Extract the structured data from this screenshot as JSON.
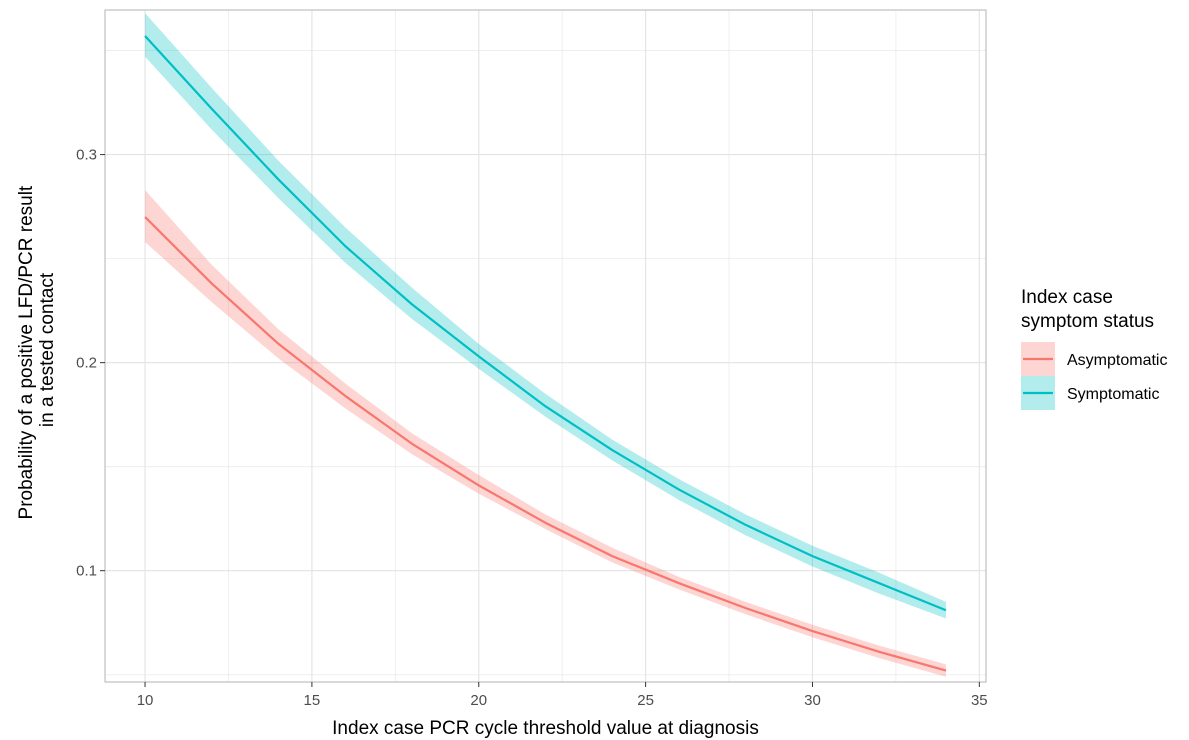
{
  "chart_data": {
    "type": "line",
    "title": "",
    "xlabel": "Index case PCR cycle threshold value at diagnosis",
    "ylabel_lines": [
      "Probability of a positive LFD/PCR result",
      "in a tested contact"
    ],
    "xlim": [
      8.8,
      35.2
    ],
    "ylim": [
      0.0465,
      0.3695
    ],
    "x_ticks": [
      10,
      15,
      20,
      25,
      30,
      35
    ],
    "x_tick_labels": [
      "10",
      "15",
      "20",
      "25",
      "30",
      "35"
    ],
    "y_ticks": [
      0.1,
      0.2,
      0.3
    ],
    "y_tick_labels": [
      "0.1",
      "0.2",
      "0.3"
    ],
    "grid": true,
    "legend": {
      "title_lines": [
        "Index case",
        "symptom status"
      ],
      "placement": "right"
    },
    "series": [
      {
        "name": "Asymptomatic",
        "color": "#F8766D",
        "ribbon_color": "#F8766D",
        "x": [
          10,
          12,
          14,
          16,
          18,
          20,
          22,
          24,
          26,
          28,
          30,
          32,
          34
        ],
        "y": [
          0.27,
          0.238,
          0.209,
          0.184,
          0.161,
          0.141,
          0.123,
          0.107,
          0.094,
          0.082,
          0.071,
          0.061,
          0.052
        ],
        "lower": [
          0.258,
          0.229,
          0.202,
          0.178,
          0.156,
          0.137,
          0.12,
          0.104,
          0.091,
          0.079,
          0.068,
          0.058,
          0.049
        ],
        "upper": [
          0.283,
          0.247,
          0.216,
          0.19,
          0.166,
          0.146,
          0.127,
          0.111,
          0.097,
          0.085,
          0.074,
          0.064,
          0.055
        ]
      },
      {
        "name": "Symptomatic",
        "color": "#00BFC4",
        "ribbon_color": "#00BFC4",
        "x": [
          10,
          12,
          14,
          16,
          18,
          20,
          22,
          24,
          26,
          28,
          30,
          32,
          34
        ],
        "y": [
          0.357,
          0.322,
          0.288,
          0.256,
          0.228,
          0.203,
          0.179,
          0.158,
          0.139,
          0.122,
          0.107,
          0.094,
          0.081
        ],
        "lower": [
          0.347,
          0.312,
          0.279,
          0.248,
          0.221,
          0.197,
          0.174,
          0.153,
          0.134,
          0.117,
          0.102,
          0.089,
          0.077
        ],
        "upper": [
          0.368,
          0.332,
          0.297,
          0.265,
          0.236,
          0.209,
          0.185,
          0.163,
          0.144,
          0.127,
          0.112,
          0.099,
          0.085
        ]
      }
    ]
  }
}
